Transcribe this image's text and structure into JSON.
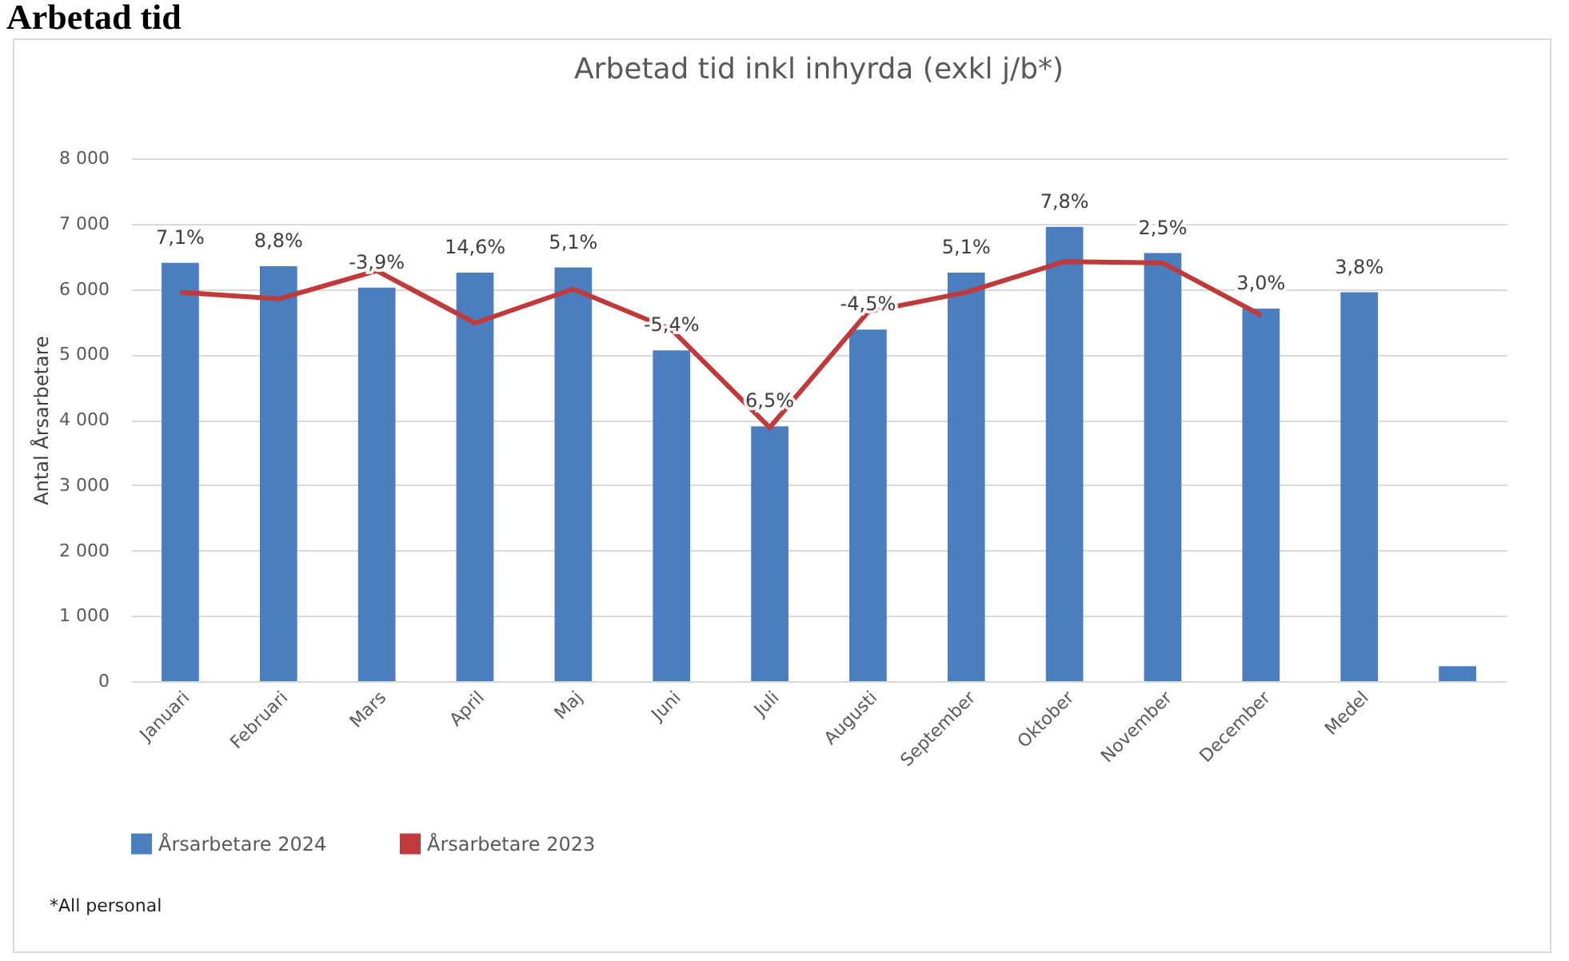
{
  "chart_data": {
    "type": "bar",
    "title": "Arbetad tid",
    "subtitle": "Arbetad tid inkl inhyrda (exkl j/b*)",
    "ylabel": "Antal Årsarbetare",
    "categories": [
      "Januari",
      "Februari",
      "Mars",
      "April",
      "Maj",
      "Juni",
      "Juli",
      "Augusti",
      "September",
      "Oktober",
      "November",
      "December",
      "Medel",
      null
    ],
    "series": [
      {
        "name": "Årsarbetare 2024",
        "color": "#4a7ebf",
        "values": [
          6400,
          6350,
          6020,
          6250,
          6330,
          5060,
          3900,
          5380,
          6250,
          6950,
          6550,
          5700,
          5950,
          230
        ]
      },
      {
        "name": "Årsarbetare 2023",
        "type": "line",
        "color": "#c0393b",
        "values": [
          5950,
          5850,
          6280,
          5480,
          6000,
          5380,
          3880,
          5650,
          5950,
          6420,
          6400,
          5600,
          null,
          null
        ]
      }
    ],
    "ylim": [
      0,
      8000
    ],
    "yticks": [
      {
        "value": 0,
        "label": "0"
      },
      {
        "value": 1000,
        "label": "1 000"
      },
      {
        "value": 2000,
        "label": "2 000"
      },
      {
        "value": 3000,
        "label": "3 000"
      },
      {
        "value": 4000,
        "label": "4 000"
      },
      {
        "value": 5000,
        "label": "5 000"
      },
      {
        "value": 6000,
        "label": "6 000"
      },
      {
        "value": 7000,
        "label": "7 000"
      },
      {
        "value": 8000,
        "label": "8 000"
      }
    ],
    "grid": "y",
    "legend": "bottom",
    "marker": "none",
    "line_style": "solid",
    "annotations": [
      {
        "text": "7,1%",
        "x": "Januari",
        "y": 6400
      },
      {
        "text": "8,8%",
        "x": "Februari",
        "y": 6350
      },
      {
        "text": "-3,9%",
        "x": "Mars",
        "y": 6020
      },
      {
        "text": "14,6%",
        "x": "April",
        "y": 6250
      },
      {
        "text": "5,1%",
        "x": "Maj",
        "y": 6330
      },
      {
        "text": "-5,4%",
        "x": "Juni",
        "y": 5060
      },
      {
        "text": "6,5%",
        "x": "Juli",
        "y": 3900
      },
      {
        "text": "-4,5%",
        "x": "Augusti",
        "y": 5380
      },
      {
        "text": "5,1%",
        "x": "September",
        "y": 6250
      },
      {
        "text": "7,8%",
        "x": "Oktober",
        "y": 6950
      },
      {
        "text": "2,5%",
        "x": "November",
        "y": 6550
      },
      {
        "text": "3,0%",
        "x": "December",
        "y": 5700
      },
      {
        "text": "3,8%",
        "x": "Medel",
        "y": 5950
      },
      "*All personal"
    ]
  }
}
